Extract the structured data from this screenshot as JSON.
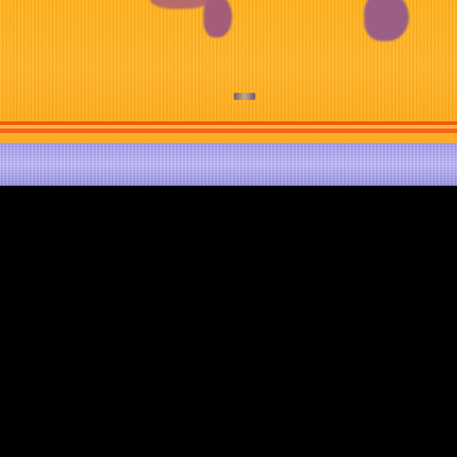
{
  "palette": {
    "background": "#000000",
    "top_panel": "#ffb21e",
    "stripe_primary": "#f05a11",
    "stripe_secondary": "#ffb43d",
    "noise_band": "#9b91e6",
    "accent_blob": "#9b5f86"
  }
}
